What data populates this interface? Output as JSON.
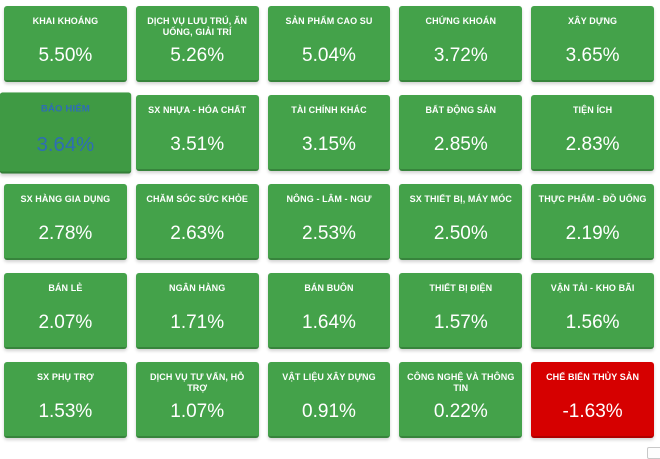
{
  "colors": {
    "page_bg": "#ffffff",
    "positive_bg": "#44a24a",
    "positive_highlight_bg": "#3f9a44",
    "negative_bg": "#d60000",
    "tile_text": "#ffffff",
    "highlight_text": "#2e6db5"
  },
  "chart_data": {
    "type": "heatmap",
    "description": "Sector performance heatmap, percent change by industry",
    "unit": "%",
    "grid": {
      "columns": 5,
      "rows": 5
    },
    "legend_position": "none",
    "sectors": [
      {
        "label": "KHAI KHOÁNG",
        "value": "5.50%",
        "pct": 5.5,
        "state": "up"
      },
      {
        "label": "DỊCH VỤ LƯU TRÚ, ĂN UỐNG, GIẢI TRÍ",
        "value": "5.26%",
        "pct": 5.26,
        "state": "up"
      },
      {
        "label": "SẢN PHẨM CAO SU",
        "value": "5.04%",
        "pct": 5.04,
        "state": "up"
      },
      {
        "label": "CHỨNG KHOÁN",
        "value": "3.72%",
        "pct": 3.72,
        "state": "up"
      },
      {
        "label": "XÂY DỰNG",
        "value": "3.65%",
        "pct": 3.65,
        "state": "up"
      },
      {
        "label": "BẢO HIỂM",
        "value": "3.64%",
        "pct": 3.64,
        "state": "up",
        "highlighted": true
      },
      {
        "label": "SX NHỰA - HÓA CHẤT",
        "value": "3.51%",
        "pct": 3.51,
        "state": "up"
      },
      {
        "label": "TÀI CHÍNH KHÁC",
        "value": "3.15%",
        "pct": 3.15,
        "state": "up"
      },
      {
        "label": "BẤT ĐỘNG SẢN",
        "value": "2.85%",
        "pct": 2.85,
        "state": "up"
      },
      {
        "label": "TIỆN ÍCH",
        "value": "2.83%",
        "pct": 2.83,
        "state": "up"
      },
      {
        "label": "SX HÀNG GIA DỤNG",
        "value": "2.78%",
        "pct": 2.78,
        "state": "up"
      },
      {
        "label": "CHĂM SÓC SỨC KHỎE",
        "value": "2.63%",
        "pct": 2.63,
        "state": "up"
      },
      {
        "label": "NÔNG - LÂM - NGƯ",
        "value": "2.53%",
        "pct": 2.53,
        "state": "up"
      },
      {
        "label": "SX THIẾT BỊ, MÁY MÓC",
        "value": "2.50%",
        "pct": 2.5,
        "state": "up"
      },
      {
        "label": "THỰC PHẨM - ĐỒ UỐNG",
        "value": "2.19%",
        "pct": 2.19,
        "state": "up"
      },
      {
        "label": "BÁN LẺ",
        "value": "2.07%",
        "pct": 2.07,
        "state": "up"
      },
      {
        "label": "NGÂN HÀNG",
        "value": "1.71%",
        "pct": 1.71,
        "state": "up"
      },
      {
        "label": "BÁN BUÔN",
        "value": "1.64%",
        "pct": 1.64,
        "state": "up"
      },
      {
        "label": "THIẾT BỊ ĐIỆN",
        "value": "1.57%",
        "pct": 1.57,
        "state": "up"
      },
      {
        "label": "VẬN TẢI - KHO BÃI",
        "value": "1.56%",
        "pct": 1.56,
        "state": "up"
      },
      {
        "label": "SX PHỤ TRỢ",
        "value": "1.53%",
        "pct": 1.53,
        "state": "up"
      },
      {
        "label": "DỊCH VỤ TƯ VẤN, HỖ TRỢ",
        "value": "1.07%",
        "pct": 1.07,
        "state": "up"
      },
      {
        "label": "VẬT LIỆU XÂY DỰNG",
        "value": "0.91%",
        "pct": 0.91,
        "state": "up"
      },
      {
        "label": "CÔNG NGHỆ VÀ THÔNG TIN",
        "value": "0.22%",
        "pct": 0.22,
        "state": "up"
      },
      {
        "label": "CHẾ BIẾN THỦY SẢN",
        "value": "-1.63%",
        "pct": -1.63,
        "state": "down"
      }
    ]
  }
}
